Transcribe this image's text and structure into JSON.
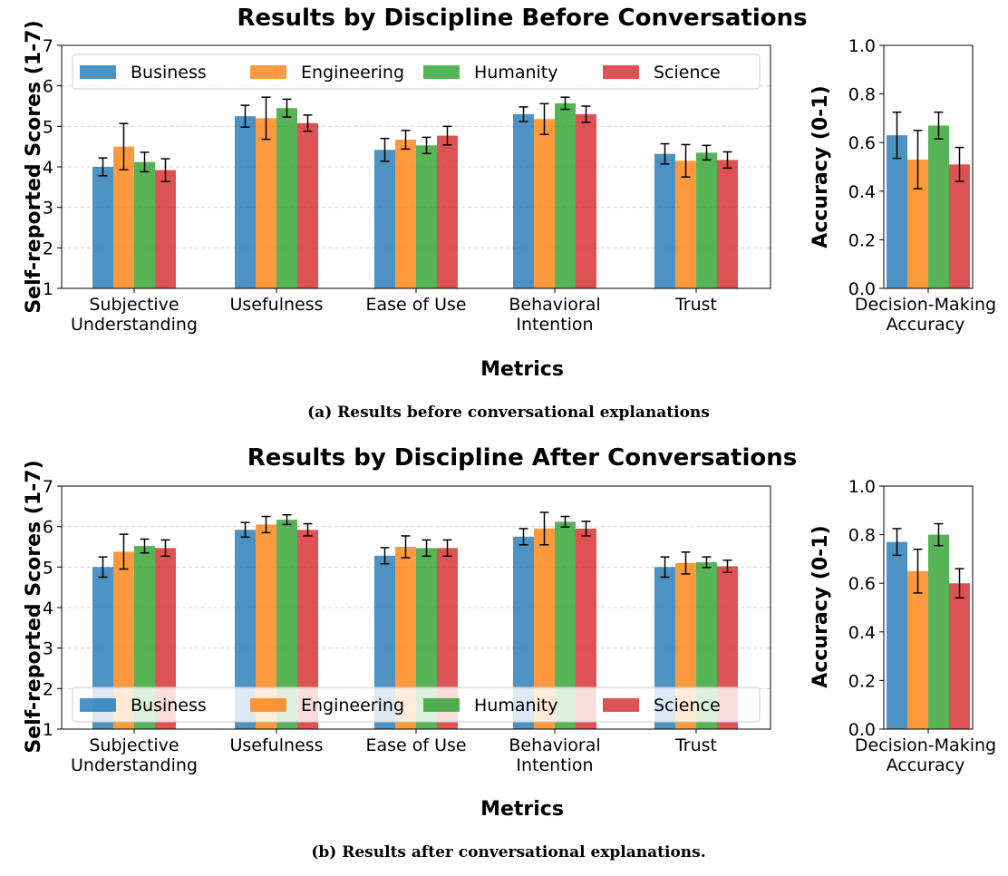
{
  "panels": [
    {
      "title": "Results by Discipline Before Conversations",
      "caption": "(a) Results before conversational explanations",
      "legend_position": "top",
      "chart_data": [
        {
          "type": "bar",
          "title": "Results by Discipline Before Conversations",
          "xlabel": "Metrics",
          "ylabel": "Self-reported Scores (1-7)",
          "ylim": [
            1,
            7
          ],
          "yticks": [
            "1",
            "2",
            "3",
            "4",
            "5",
            "6",
            "7"
          ],
          "grid": true,
          "categories": [
            "Subjective\nUnderstanding",
            "Usefulness",
            "Ease of Use",
            "Behavioral\nIntention",
            "Trust"
          ],
          "series": [
            {
              "name": "Business",
              "values": [
                4.0,
                5.25,
                4.42,
                5.3,
                4.32
              ],
              "errors": [
                0.22,
                0.27,
                0.28,
                0.18,
                0.25
              ]
            },
            {
              "name": "Engineering",
              "values": [
                4.5,
                5.2,
                4.67,
                5.18,
                4.15
              ],
              "errors": [
                0.57,
                0.52,
                0.23,
                0.38,
                0.4
              ]
            },
            {
              "name": "Humanity",
              "values": [
                4.12,
                5.45,
                4.53,
                5.57,
                4.35
              ],
              "errors": [
                0.24,
                0.22,
                0.2,
                0.15,
                0.18
              ]
            },
            {
              "name": "Science",
              "values": [
                3.92,
                5.08,
                4.77,
                5.3,
                4.17
              ],
              "errors": [
                0.28,
                0.2,
                0.23,
                0.2,
                0.2
              ]
            }
          ]
        },
        {
          "type": "bar",
          "ylabel": "Accuracy (0-1)",
          "ylim": [
            0,
            1
          ],
          "yticks": [
            "0.0",
            "0.2",
            "0.4",
            "0.6",
            "0.8",
            "1.0"
          ],
          "categories": [
            "Decision-Making\nAccuracy"
          ],
          "series": [
            {
              "name": "Business",
              "values": [
                0.63
              ],
              "errors": [
                0.095
              ]
            },
            {
              "name": "Engineering",
              "values": [
                0.53
              ],
              "errors": [
                0.12
              ]
            },
            {
              "name": "Humanity",
              "values": [
                0.67
              ],
              "errors": [
                0.055
              ]
            },
            {
              "name": "Science",
              "values": [
                0.51
              ],
              "errors": [
                0.07
              ]
            }
          ]
        }
      ]
    },
    {
      "title": "Results by Discipline After Conversations",
      "caption": "(b) Results after conversational explanations.",
      "legend_position": "bottom",
      "chart_data": [
        {
          "type": "bar",
          "title": "Results by Discipline After Conversations",
          "xlabel": "Metrics",
          "ylabel": "Self-reported Scores (1-7)",
          "ylim": [
            1,
            7
          ],
          "yticks": [
            "1",
            "2",
            "3",
            "4",
            "5",
            "6",
            "7"
          ],
          "grid": true,
          "categories": [
            "Subjective\nUnderstanding",
            "Usefulness",
            "Ease of Use",
            "Behavioral\nIntention",
            "Trust"
          ],
          "series": [
            {
              "name": "Business",
              "values": [
                5.0,
                5.92,
                5.28,
                5.75,
                5.0
              ],
              "errors": [
                0.25,
                0.18,
                0.2,
                0.2,
                0.25
              ]
            },
            {
              "name": "Engineering",
              "values": [
                5.38,
                6.05,
                5.5,
                5.95,
                5.1
              ],
              "errors": [
                0.43,
                0.2,
                0.27,
                0.4,
                0.27
              ]
            },
            {
              "name": "Humanity",
              "values": [
                5.52,
                6.17,
                5.47,
                6.12,
                5.12
              ],
              "errors": [
                0.17,
                0.12,
                0.2,
                0.13,
                0.13
              ]
            },
            {
              "name": "Science",
              "values": [
                5.47,
                5.92,
                5.47,
                5.95,
                5.02
              ],
              "errors": [
                0.2,
                0.15,
                0.2,
                0.18,
                0.15
              ]
            }
          ]
        },
        {
          "type": "bar",
          "ylabel": "Accuracy (0-1)",
          "ylim": [
            0,
            1
          ],
          "yticks": [
            "0.0",
            "0.2",
            "0.4",
            "0.6",
            "0.8",
            "1.0"
          ],
          "categories": [
            "Decision-Making\nAccuracy"
          ],
          "series": [
            {
              "name": "Business",
              "values": [
                0.77
              ],
              "errors": [
                0.055
              ]
            },
            {
              "name": "Engineering",
              "values": [
                0.65
              ],
              "errors": [
                0.09
              ]
            },
            {
              "name": "Humanity",
              "values": [
                0.8
              ],
              "errors": [
                0.045
              ]
            },
            {
              "name": "Science",
              "values": [
                0.6
              ],
              "errors": [
                0.06
              ]
            }
          ]
        }
      ]
    }
  ],
  "colors": {
    "Business": "#1f77b4",
    "Engineering": "#ff7f0e",
    "Humanity": "#2ca02c",
    "Science": "#d62728"
  }
}
